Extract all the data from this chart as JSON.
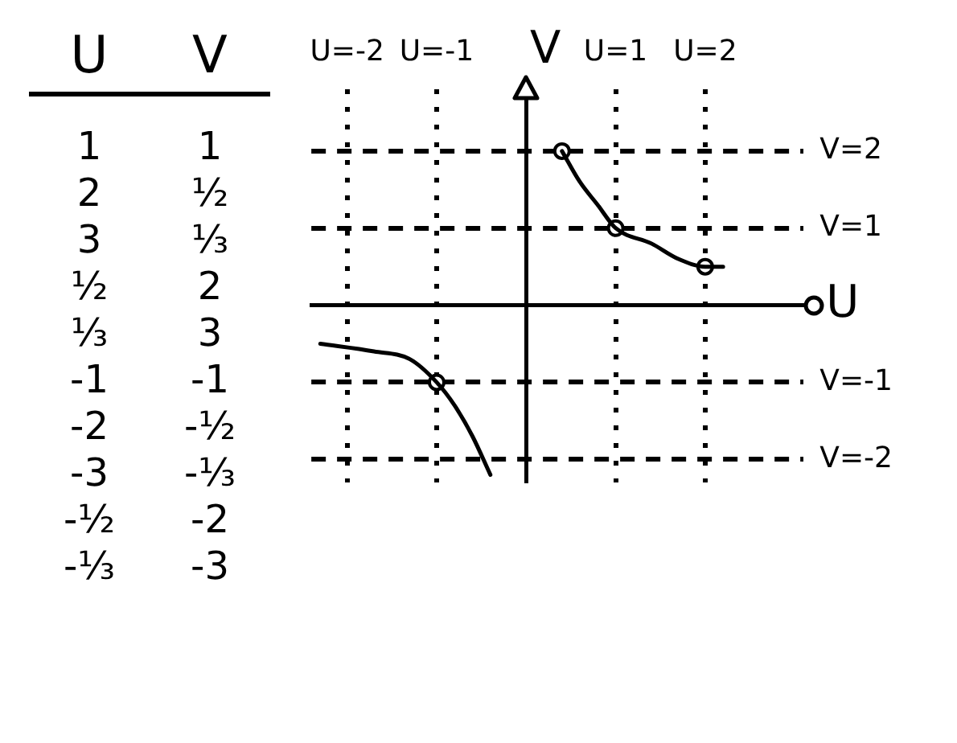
{
  "chart_data": [
    {
      "type": "other",
      "annotations": [
        "U",
        "V",
        "1",
        "1",
        "2",
        "½",
        "3",
        "⅓",
        "½",
        "2",
        "⅓",
        "3",
        "-1",
        "-1",
        "-2",
        "-½",
        "-3",
        "-⅓",
        "-½",
        "-2",
        "-⅓",
        "-3"
      ]
    },
    {
      "type": "line",
      "xlabel": "U",
      "ylabel": "V",
      "series": [
        {
          "color": "#000000",
          "x": [
            -2.3,
            -1.7,
            -1.3,
            -1,
            -0.8,
            -0.6,
            -0.4
          ],
          "values": [
            -0.5,
            -0.6,
            -0.7,
            -1,
            -1.3,
            -1.7,
            -2.2
          ]
        },
        {
          "color": "#000000",
          "x": [
            0.4,
            0.6,
            0.8,
            1,
            1.4,
            1.7,
            2,
            2.2
          ],
          "values": [
            2,
            1.6,
            1.3,
            1,
            0.8,
            0.6,
            0.5,
            0.5
          ]
        },
        {
          "type": "scatter",
          "color": "#000000",
          "marker": "circle",
          "x": [
            0.4,
            1,
            2,
            -1
          ],
          "values": [
            2,
            1,
            0.5,
            -1
          ]
        }
      ],
      "xlim": [
        -2.4,
        3.1
      ],
      "ylim": [
        -2.3,
        2.8
      ],
      "xticks": [
        {
          "value": -2,
          "label": "U=-2"
        },
        {
          "value": -1,
          "label": "U=-1"
        },
        {
          "value": 1,
          "label": "U=1"
        },
        {
          "value": 2,
          "label": "U=2"
        }
      ],
      "yticks": [
        {
          "value": 2,
          "label": "V=2"
        },
        {
          "value": 1,
          "label": "V=1"
        },
        {
          "value": -1,
          "label": "V=-1"
        },
        {
          "value": -2,
          "label": "V=-2"
        }
      ],
      "grid": true,
      "marker": "none",
      "line_style": "solid"
    }
  ]
}
